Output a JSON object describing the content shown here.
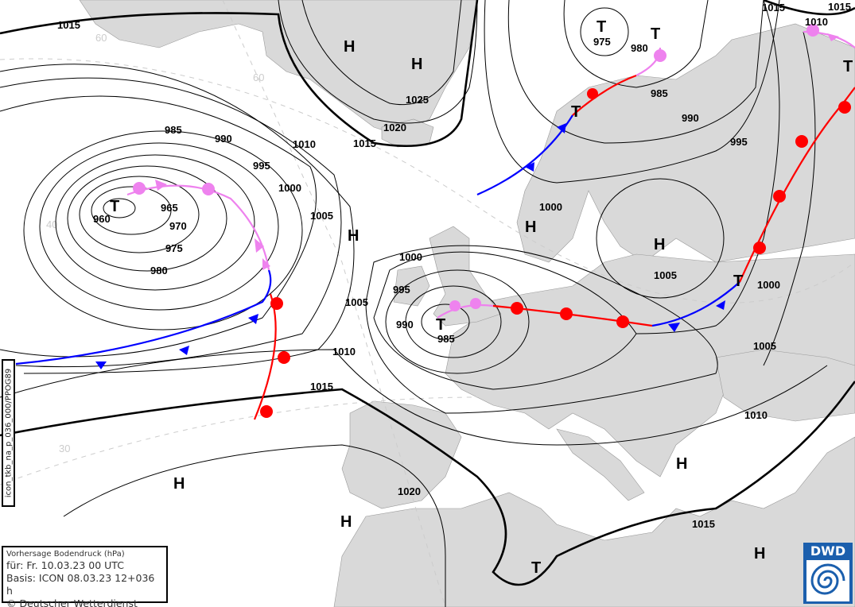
{
  "map": {
    "colors": {
      "land": "#d9d9d9",
      "sea": "#ffffff",
      "isobar": "#000000",
      "cold_front": "#0000ff",
      "warm_front": "#ff0000",
      "occlusion": "#ee82ee"
    },
    "graticule_labels": [
      "60",
      "60",
      "40",
      "30",
      "30",
      "40",
      "60"
    ],
    "isobar_labels": [
      "1015",
      "985",
      "990",
      "995",
      "1000",
      "1005",
      "960",
      "965",
      "970",
      "975",
      "980",
      "1010",
      "1015",
      "1025",
      "1020",
      "1005",
      "1010",
      "1015",
      "1000",
      "995",
      "990",
      "985",
      "1000",
      "975",
      "980",
      "985",
      "990",
      "995",
      "1000",
      "1005",
      "1005",
      "1010",
      "1015",
      "1020",
      "1015",
      "1010",
      "1015"
    ],
    "centers": [
      "T",
      "H",
      "H",
      "H",
      "H",
      "H",
      "T",
      "T",
      "T",
      "T",
      "T",
      "H",
      "H",
      "T",
      "H",
      "H",
      "T"
    ]
  },
  "side_label": "icon_tkb_na_p_036_000/PPOG89",
  "legend": {
    "title": "Vorhersage Bodendruck (hPa)",
    "valid": "für:  Fr. 10.03.23  00 UTC",
    "basis": "Basis: ICON  08.03.23 12+036 h",
    "copyright": "© Deutscher Wetterdienst"
  },
  "logo": {
    "text": "DWD"
  }
}
